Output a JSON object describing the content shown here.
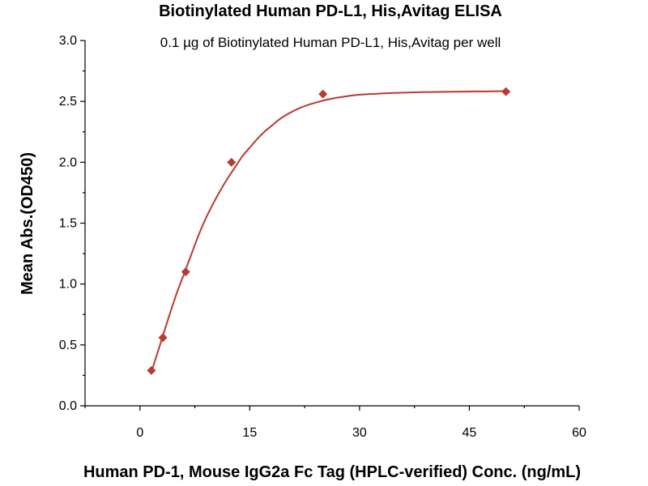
{
  "chart_data": {
    "type": "scatter",
    "title": "Biotinylated Human PD-L1, His,Avitag ELISA",
    "subtitle": "0.1 µg of Biotinylated Human PD-L1, His,Avitag per well",
    "xlabel": "Human PD-1, Mouse IgG2a Fc Tag (HPLC-verified) Conc. (ng/mL)",
    "ylabel": "Mean Abs.(OD450)",
    "xlim": [
      -7.5,
      60
    ],
    "ylim": [
      0,
      3.0
    ],
    "x_ticks": [
      0,
      15,
      30,
      45,
      60
    ],
    "x_tick_labels": [
      "0",
      "15",
      "30",
      "45",
      "60"
    ],
    "y_ticks": [
      0.0,
      0.5,
      1.0,
      1.5,
      2.0,
      2.5,
      3.0
    ],
    "y_tick_labels": [
      "0.0",
      "0.5",
      "1.0",
      "1.5",
      "2.0",
      "2.5",
      "3.0"
    ],
    "grid": false,
    "legend": "none",
    "series": [
      {
        "marker": "diamond",
        "color": "#b83a32",
        "points": [
          {
            "x": 1.5625,
            "y": 0.29
          },
          {
            "x": 3.125,
            "y": 0.56
          },
          {
            "x": 6.25,
            "y": 1.1
          },
          {
            "x": 12.5,
            "y": 2.0
          },
          {
            "x": 25,
            "y": 2.56
          },
          {
            "x": 50,
            "y": 2.58
          }
        ]
      }
    ],
    "fit_curve": {
      "color": "#b83a32",
      "points": [
        {
          "x": 1.5,
          "y": 0.27
        },
        {
          "x": 2.0,
          "y": 0.36
        },
        {
          "x": 3.0,
          "y": 0.55
        },
        {
          "x": 4.0,
          "y": 0.74
        },
        {
          "x": 5.0,
          "y": 0.92
        },
        {
          "x": 6.0,
          "y": 1.08
        },
        {
          "x": 7.0,
          "y": 1.24
        },
        {
          "x": 8.0,
          "y": 1.4
        },
        {
          "x": 9.0,
          "y": 1.54
        },
        {
          "x": 10.0,
          "y": 1.66
        },
        {
          "x": 11.0,
          "y": 1.77
        },
        {
          "x": 12.0,
          "y": 1.87
        },
        {
          "x": 13.0,
          "y": 1.96
        },
        {
          "x": 14.0,
          "y": 2.05
        },
        {
          "x": 15.0,
          "y": 2.12
        },
        {
          "x": 16.0,
          "y": 2.19
        },
        {
          "x": 17.0,
          "y": 2.25
        },
        {
          "x": 18.0,
          "y": 2.3
        },
        {
          "x": 19.0,
          "y": 2.35
        },
        {
          "x": 20.0,
          "y": 2.39
        },
        {
          "x": 22.0,
          "y": 2.45
        },
        {
          "x": 24.0,
          "y": 2.49
        },
        {
          "x": 26.0,
          "y": 2.52
        },
        {
          "x": 28.0,
          "y": 2.54
        },
        {
          "x": 30.0,
          "y": 2.555
        },
        {
          "x": 33.0,
          "y": 2.565
        },
        {
          "x": 36.0,
          "y": 2.572
        },
        {
          "x": 40.0,
          "y": 2.577
        },
        {
          "x": 44.0,
          "y": 2.58
        },
        {
          "x": 47.0,
          "y": 2.582
        },
        {
          "x": 50.0,
          "y": 2.584
        }
      ]
    }
  }
}
